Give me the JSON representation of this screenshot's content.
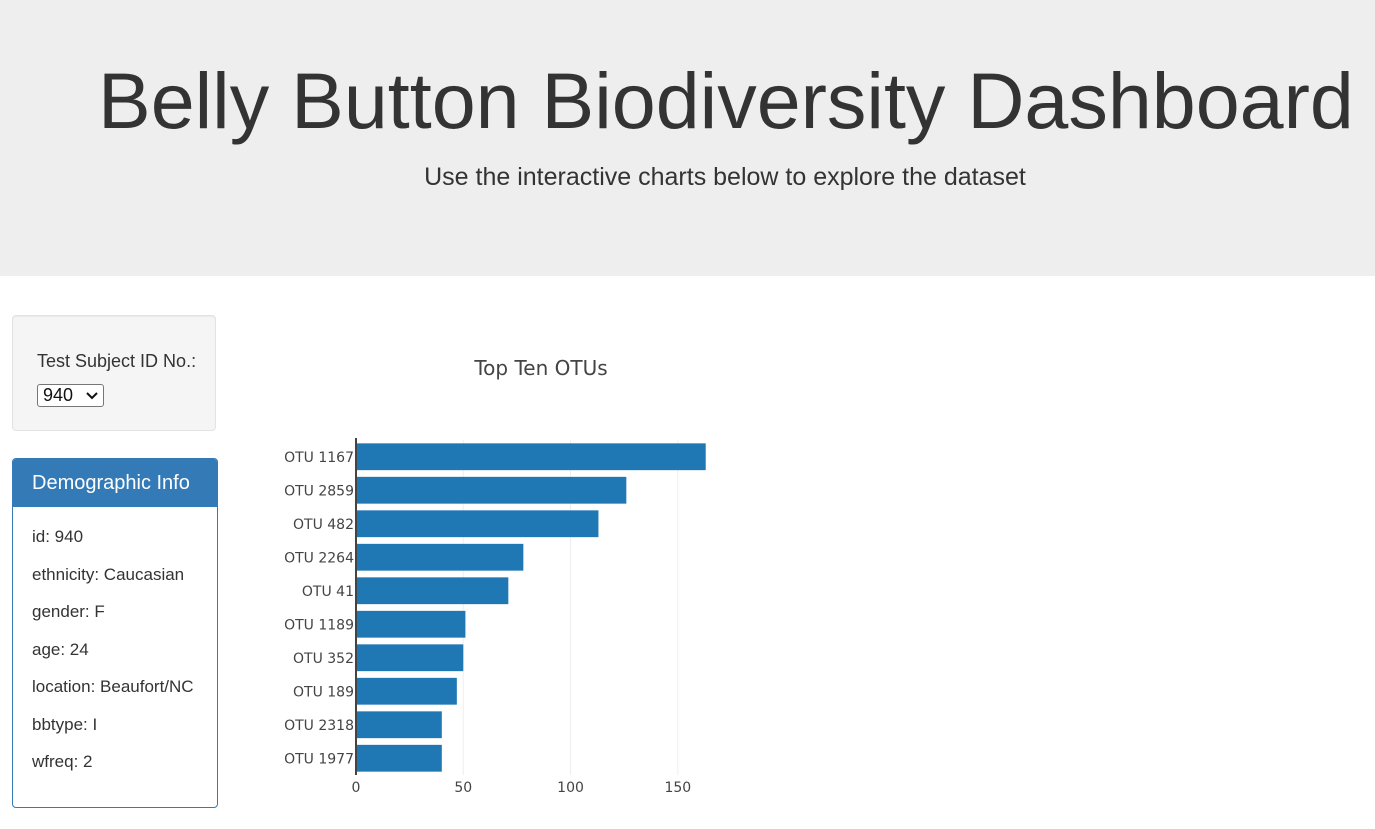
{
  "header": {
    "title": "Belly Button Biodiversity Dashboard",
    "subtitle": "Use the interactive charts below to explore the dataset"
  },
  "selector": {
    "label": "Test Subject ID No.:",
    "selected": "940"
  },
  "demographics": {
    "title": "Demographic Info",
    "rows": [
      "id: 940",
      "ethnicity: Caucasian",
      "gender: F",
      "age: 24",
      "location: Beaufort/NC",
      "bbtype: I",
      "wfreq: 2"
    ]
  },
  "colors": {
    "bar": "#1f77b4",
    "panel": "#337ab7"
  },
  "chart_data": {
    "type": "bar",
    "orientation": "horizontal",
    "title": "Top Ten OTUs",
    "categories": [
      "OTU 1167",
      "OTU 2859",
      "OTU 482",
      "OTU 2264",
      "OTU 41",
      "OTU 1189",
      "OTU 352",
      "OTU 189",
      "OTU 2318",
      "OTU 1977"
    ],
    "values": [
      163,
      126,
      113,
      78,
      71,
      51,
      50,
      47,
      40,
      40
    ],
    "xlim": [
      0,
      165
    ],
    "xticks": [
      0,
      50,
      100,
      150
    ],
    "grid": true
  }
}
